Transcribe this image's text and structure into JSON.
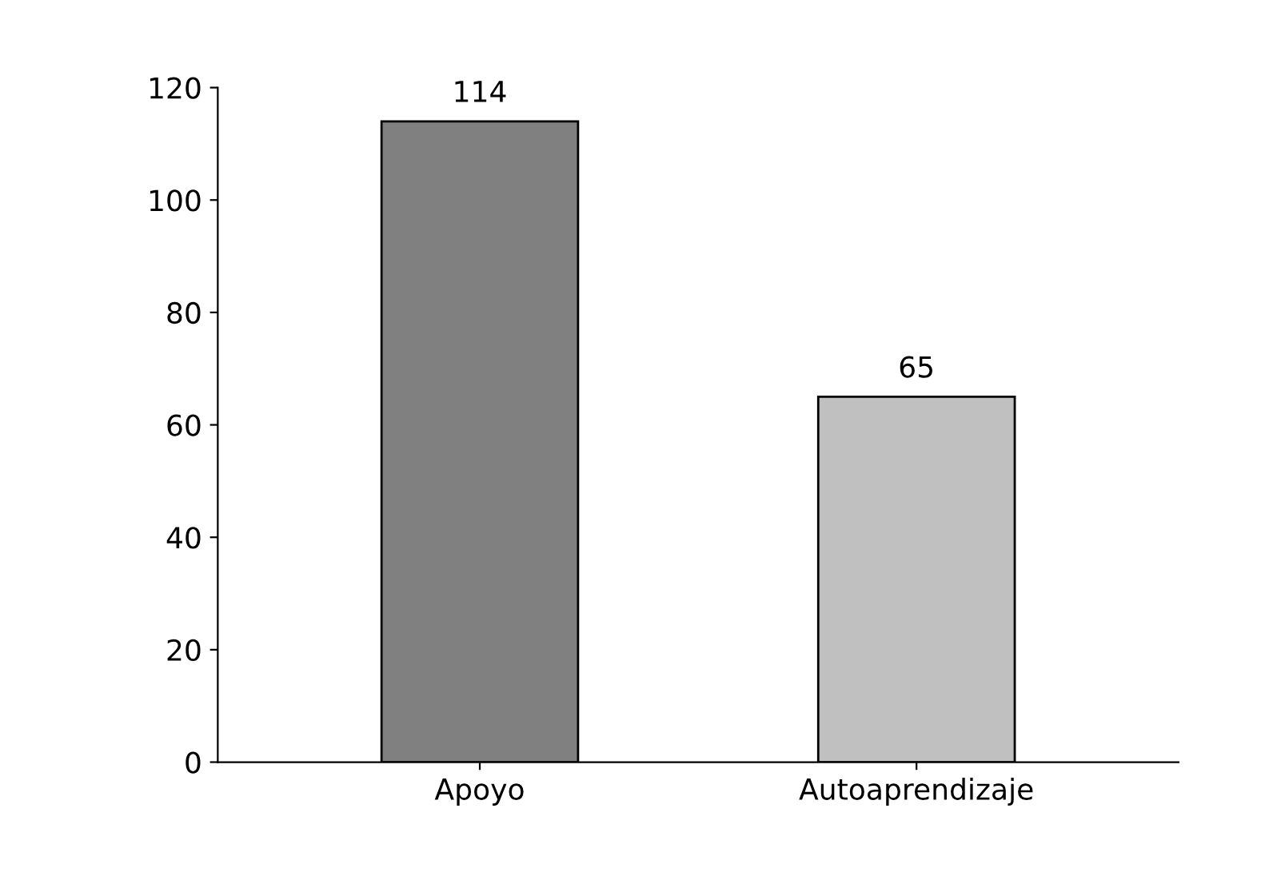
{
  "chart_data": {
    "type": "bar",
    "categories": [
      "Apoyo",
      "Autoaprendizaje"
    ],
    "values": [
      114,
      65
    ],
    "colors": [
      "#808080",
      "#c0c0c0"
    ],
    "ylim": [
      0,
      120
    ],
    "yticks": [
      0,
      20,
      40,
      60,
      80,
      100,
      120
    ],
    "grid": false,
    "data_labels": true
  }
}
